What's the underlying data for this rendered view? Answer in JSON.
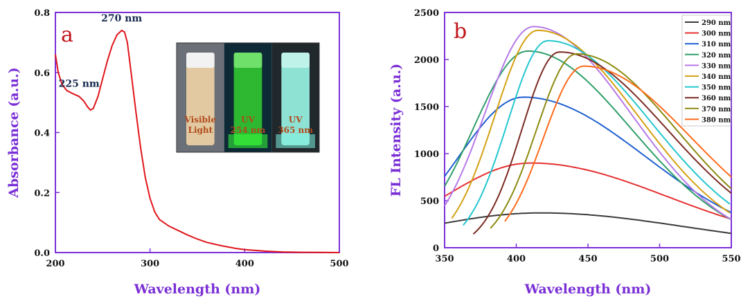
{
  "chart_data": [
    {
      "type": "line",
      "panel_label": "a",
      "xlabel": "Wavelength (nm)",
      "ylabel": "Absorbance (a.u.)",
      "xlim": [
        200,
        500
      ],
      "ylim": [
        0,
        0.8
      ],
      "xticks": [
        "200",
        "300",
        "400",
        "500"
      ],
      "yticks": [
        "0.0",
        "0.2",
        "0.4",
        "0.6",
        "0.8"
      ],
      "series": [
        {
          "color": "#e0141a",
          "x": [
            200,
            203,
            207,
            212,
            218,
            225,
            230,
            234,
            237,
            240,
            245,
            250,
            255,
            260,
            265,
            270,
            273,
            276,
            280,
            285,
            290,
            295,
            300,
            305,
            310,
            320,
            330,
            340,
            350,
            360,
            375,
            390,
            400,
            420,
            440,
            460,
            480,
            500
          ],
          "y": [
            0.66,
            0.6,
            0.56,
            0.54,
            0.53,
            0.52,
            0.505,
            0.485,
            0.475,
            0.48,
            0.52,
            0.58,
            0.64,
            0.69,
            0.725,
            0.74,
            0.735,
            0.7,
            0.6,
            0.47,
            0.35,
            0.25,
            0.18,
            0.135,
            0.11,
            0.088,
            0.073,
            0.058,
            0.045,
            0.034,
            0.023,
            0.014,
            0.01,
            0.005,
            0.002,
            0.001,
            0.0005,
            0.0
          ]
        }
      ],
      "annotations": [
        {
          "text": "225 nm",
          "x": 225,
          "y": 0.552
        },
        {
          "text": "270 nm",
          "x": 270,
          "y": 0.77
        }
      ],
      "inset": {
        "labels": [
          {
            "lines": [
              "Visible",
              "Light"
            ]
          },
          {
            "lines": [
              "UV",
              "254 nm"
            ]
          },
          {
            "lines": [
              "UV",
              "365 nm"
            ]
          }
        ]
      }
    },
    {
      "type": "line",
      "panel_label": "b",
      "xlabel": "Wavelength (nm)",
      "ylabel": "FL Intensity (a.u.)",
      "xlim": [
        350,
        550
      ],
      "ylim": [
        0,
        2500
      ],
      "xticks": [
        "350",
        "400",
        "450",
        "500",
        "550"
      ],
      "yticks": [
        "0",
        "500",
        "1000",
        "1500",
        "2000",
        "2500"
      ],
      "legend_position": "top-right",
      "series": [
        {
          "name": "290 nm",
          "color": "#3a3a3a",
          "peak": 417,
          "height": 370,
          "start": 350,
          "wl": 80,
          "wr": 100
        },
        {
          "name": "300 nm",
          "color": "#e63030",
          "peak": 410,
          "height": 900,
          "start": 350,
          "wl": 60,
          "wr": 95
        },
        {
          "name": "310 nm",
          "color": "#1f5fd0",
          "peak": 405,
          "height": 1600,
          "start": 350,
          "wl": 45,
          "wr": 85
        },
        {
          "name": "320 nm",
          "color": "#2f9e6a",
          "peak": 408,
          "height": 2090,
          "start": 350,
          "wl": 38,
          "wr": 72
        },
        {
          "name": "330 nm",
          "color": "#b679e8",
          "peak": 412,
          "height": 2350,
          "start": 350,
          "wl": 34,
          "wr": 68
        },
        {
          "name": "340 nm",
          "color": "#d4a012",
          "peak": 415,
          "height": 2310,
          "start": 355,
          "wl": 30,
          "wr": 70
        },
        {
          "name": "350 nm",
          "color": "#22c6cf",
          "peak": 422,
          "height": 2200,
          "start": 363,
          "wl": 28,
          "wr": 72
        },
        {
          "name": "360 nm",
          "color": "#7a2a22",
          "peak": 430,
          "height": 2080,
          "start": 370,
          "wl": 26,
          "wr": 75
        },
        {
          "name": "370 nm",
          "color": "#8c8a10",
          "peak": 442,
          "height": 2060,
          "start": 382,
          "wl": 28,
          "wr": 70
        },
        {
          "name": "380 nm",
          "color": "#ff6a1a",
          "peak": 447,
          "height": 1930,
          "start": 392,
          "wl": 28,
          "wr": 75
        }
      ]
    }
  ]
}
